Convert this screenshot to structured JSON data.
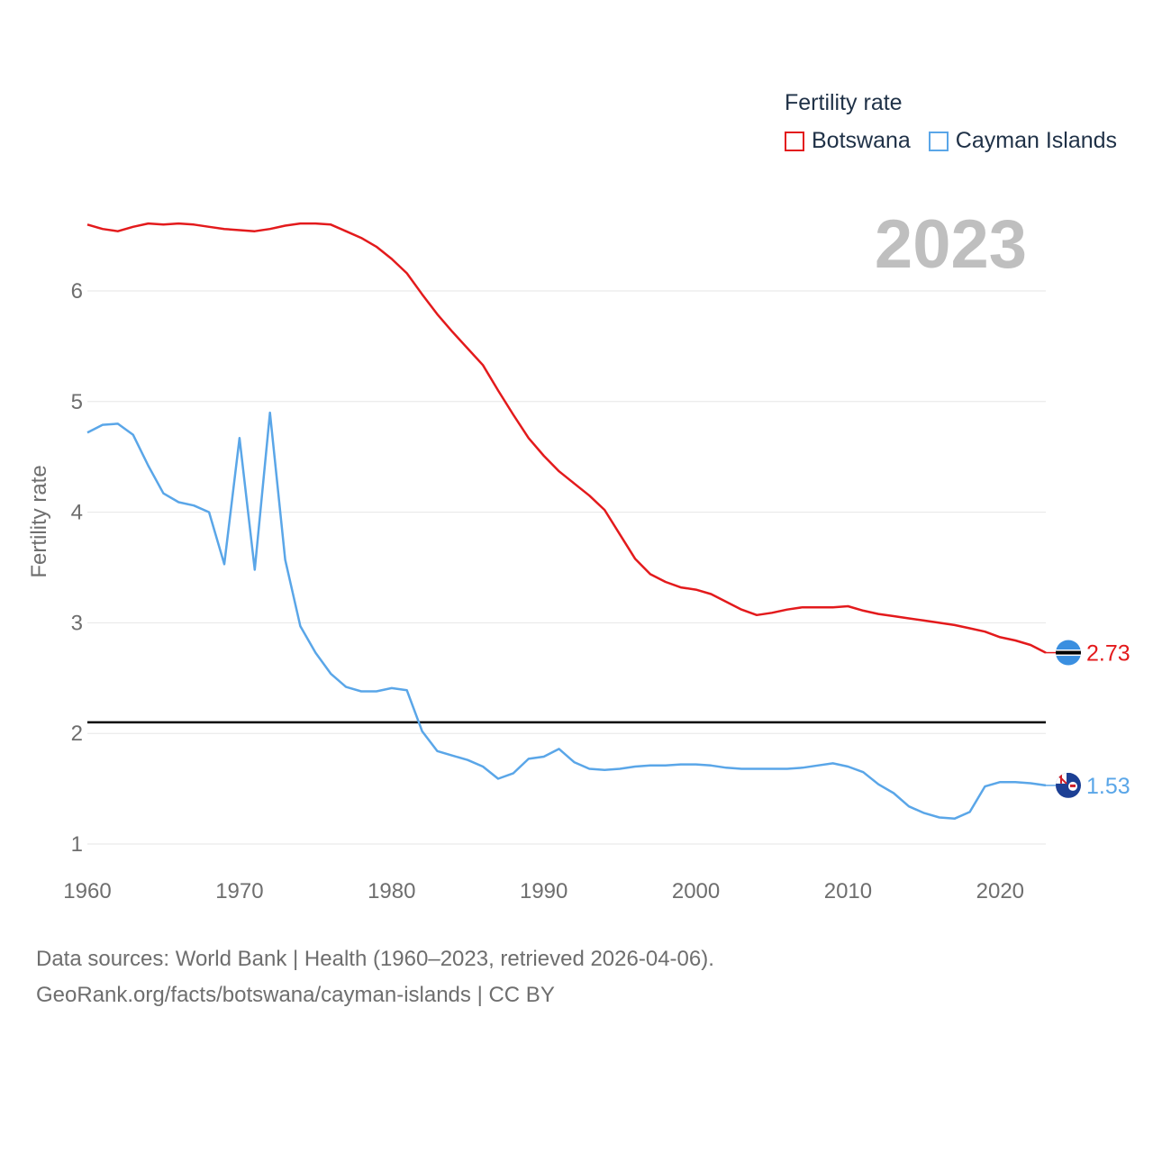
{
  "legend": {
    "title": "Fertility rate",
    "items": [
      {
        "name": "Botswana",
        "color": "#e31a1c"
      },
      {
        "name": "Cayman Islands",
        "color": "#5aa6e8"
      }
    ]
  },
  "year_label": "2023",
  "source": {
    "line1": "Data sources: World Bank | Health (1960–2023, retrieved 2026-04-06).",
    "line2": "GeoRank.org/facts/botswana/cayman-islands | CC BY"
  },
  "chart_data": {
    "type": "line",
    "title": "Fertility rate",
    "xlabel": "",
    "ylabel": "Fertility rate",
    "xlim": [
      1960,
      2023
    ],
    "ylim": [
      0.8,
      6.8
    ],
    "xticks": [
      1960,
      1970,
      1980,
      1990,
      2000,
      2010,
      2020
    ],
    "yticks": [
      1,
      2,
      3,
      4,
      5,
      6
    ],
    "reference_line": 2.1,
    "x": [
      1960,
      1961,
      1962,
      1963,
      1964,
      1965,
      1966,
      1967,
      1968,
      1969,
      1970,
      1971,
      1972,
      1973,
      1974,
      1975,
      1976,
      1977,
      1978,
      1979,
      1980,
      1981,
      1982,
      1983,
      1984,
      1985,
      1986,
      1987,
      1988,
      1989,
      1990,
      1991,
      1992,
      1993,
      1994,
      1995,
      1996,
      1997,
      1998,
      1999,
      2000,
      2001,
      2002,
      2003,
      2004,
      2005,
      2006,
      2007,
      2008,
      2009,
      2010,
      2011,
      2012,
      2013,
      2014,
      2015,
      2016,
      2017,
      2018,
      2019,
      2020,
      2021,
      2022,
      2023
    ],
    "series": [
      {
        "name": "Botswana",
        "color": "#e31a1c",
        "end_label": "2.73",
        "values": [
          6.6,
          6.56,
          6.54,
          6.58,
          6.61,
          6.6,
          6.61,
          6.6,
          6.58,
          6.56,
          6.55,
          6.54,
          6.56,
          6.59,
          6.61,
          6.61,
          6.6,
          6.54,
          6.48,
          6.4,
          6.29,
          6.16,
          5.97,
          5.79,
          5.63,
          5.48,
          5.33,
          5.1,
          4.88,
          4.67,
          4.51,
          4.37,
          4.26,
          4.15,
          4.02,
          3.8,
          3.58,
          3.44,
          3.37,
          3.32,
          3.3,
          3.26,
          3.19,
          3.12,
          3.07,
          3.09,
          3.12,
          3.14,
          3.14,
          3.14,
          3.15,
          3.11,
          3.08,
          3.06,
          3.04,
          3.02,
          3.0,
          2.98,
          2.95,
          2.92,
          2.87,
          2.84,
          2.8,
          2.73
        ]
      },
      {
        "name": "Cayman Islands",
        "color": "#5aa6e8",
        "end_label": "1.53",
        "values": [
          4.72,
          4.79,
          4.8,
          4.7,
          4.42,
          4.17,
          4.09,
          4.06,
          4.0,
          3.53,
          4.67,
          3.48,
          4.9,
          3.57,
          2.97,
          2.73,
          2.54,
          2.42,
          2.38,
          2.38,
          2.41,
          2.39,
          2.02,
          1.84,
          1.8,
          1.76,
          1.7,
          1.59,
          1.64,
          1.77,
          1.79,
          1.86,
          1.74,
          1.68,
          1.67,
          1.68,
          1.7,
          1.71,
          1.71,
          1.72,
          1.72,
          1.71,
          1.69,
          1.68,
          1.68,
          1.68,
          1.68,
          1.69,
          1.71,
          1.73,
          1.7,
          1.65,
          1.54,
          1.46,
          1.34,
          1.28,
          1.24,
          1.23,
          1.29,
          1.52,
          1.56,
          1.56,
          1.55,
          1.53
        ]
      }
    ]
  }
}
